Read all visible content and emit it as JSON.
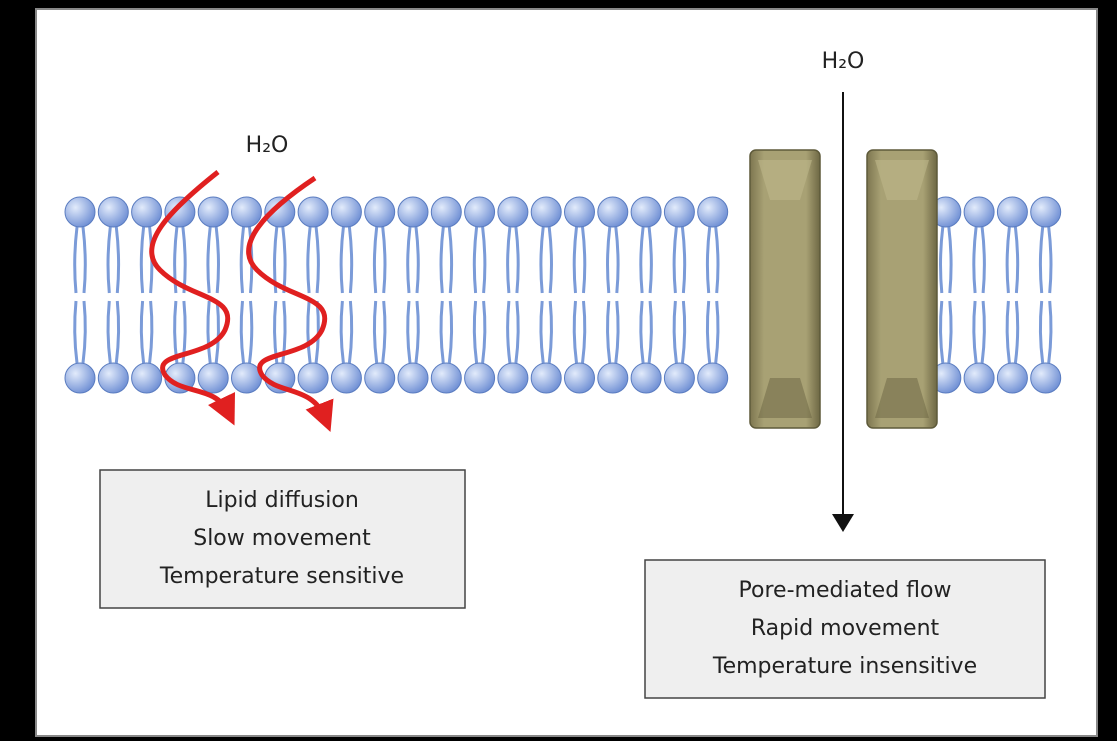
{
  "left_label": "H₂O",
  "right_label": "H₂O",
  "left_box": {
    "lines": [
      "Lipid diffusion",
      "Slow movement",
      "Temperature sensitive"
    ]
  },
  "right_box": {
    "lines": [
      "Pore-mediated flow",
      "Rapid movement",
      "Temperature insensitive"
    ]
  }
}
